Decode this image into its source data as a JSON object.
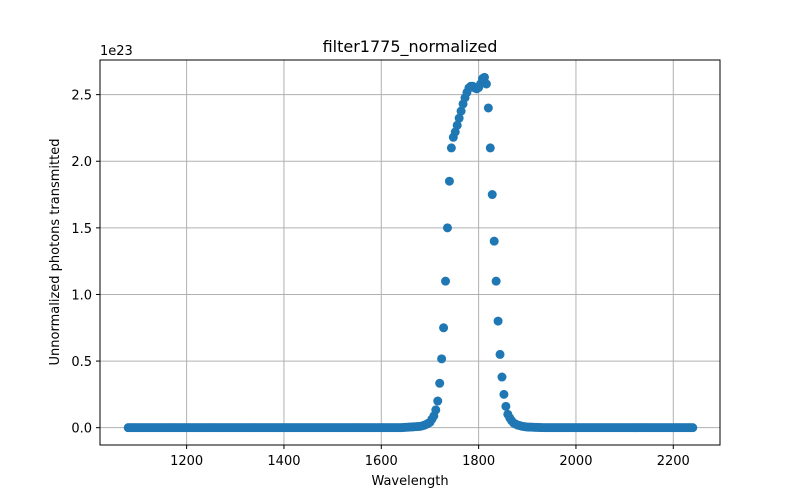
{
  "chart_data": {
    "type": "scatter",
    "title": "filter1775_normalized",
    "xlabel": "Wavelength",
    "ylabel": "Unnormalized photons transmitted",
    "y_offset_label": "1e23",
    "xlim": [
      1022,
      2296
    ],
    "ylim": [
      -0.13,
      2.76
    ],
    "x_ticks": [
      1200,
      1400,
      1600,
      1800,
      2000,
      2200
    ],
    "x_tick_labels": [
      "1200",
      "1400",
      "1600",
      "1800",
      "2000",
      "2200"
    ],
    "y_ticks": [
      0.0,
      0.5,
      1.0,
      1.5,
      2.0,
      2.5
    ],
    "y_tick_labels": [
      "0.0",
      "0.5",
      "1.0",
      "1.5",
      "2.0",
      "2.5"
    ],
    "grid": true,
    "color": "#1f77b4",
    "x_range": [
      1080,
      2240
    ],
    "x_step": 4,
    "y_scale_power": 23,
    "profile_x": [
      1080,
      1640,
      1660,
      1680,
      1690,
      1700,
      1710,
      1716,
      1722,
      1728,
      1732,
      1736,
      1740,
      1744,
      1748,
      1752,
      1756,
      1762,
      1768,
      1774,
      1780,
      1786,
      1792,
      1798,
      1804,
      1808,
      1812,
      1816,
      1820,
      1824,
      1828,
      1832,
      1836,
      1840,
      1844,
      1848,
      1852,
      1856,
      1860,
      1866,
      1872,
      1880,
      1890,
      1900,
      1920,
      1940,
      2240
    ],
    "profile_y": [
      0.0,
      0.0,
      0.005,
      0.01,
      0.02,
      0.04,
      0.1,
      0.2,
      0.4,
      0.75,
      1.1,
      1.5,
      1.85,
      2.1,
      2.18,
      2.22,
      2.27,
      2.35,
      2.43,
      2.5,
      2.55,
      2.57,
      2.55,
      2.54,
      2.58,
      2.62,
      2.63,
      2.58,
      2.4,
      2.1,
      1.75,
      1.4,
      1.1,
      0.8,
      0.55,
      0.38,
      0.25,
      0.16,
      0.1,
      0.06,
      0.035,
      0.02,
      0.01,
      0.005,
      0.002,
      0.0,
      0.0
    ]
  }
}
